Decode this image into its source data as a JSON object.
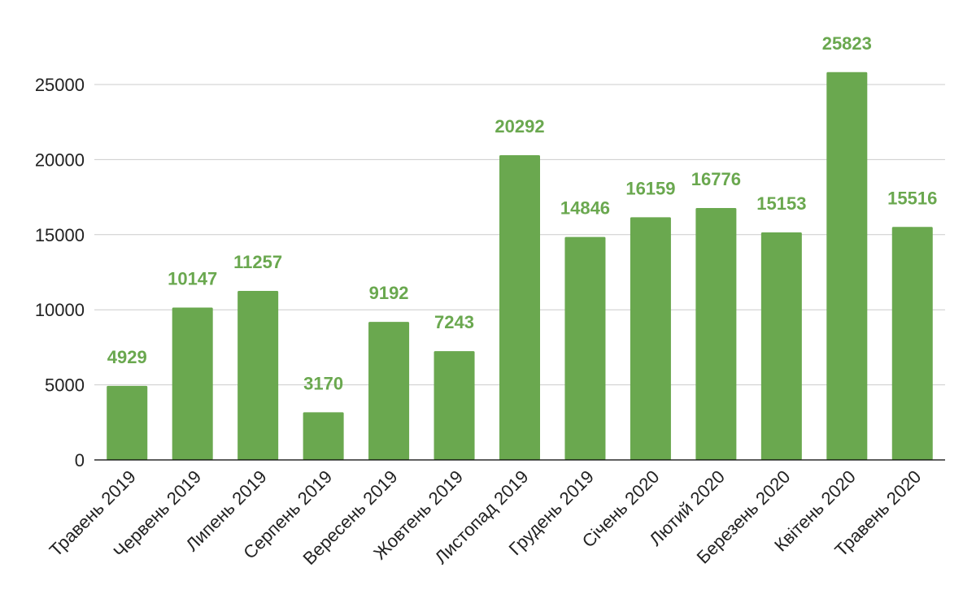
{
  "chart_data": {
    "type": "bar",
    "title": "",
    "xlabel": "",
    "ylabel": "",
    "categories": [
      "Травень 2019",
      "Червень 2019",
      "Липень 2019",
      "Серпень 2019",
      "Вересень 2019",
      "Жовтень 2019",
      "Листопад 2019",
      "Грудень 2019",
      "Січень 2020",
      "Лютий 2020",
      "Березень 2020",
      "Квітень 2020",
      "Травень 2020"
    ],
    "values": [
      4929,
      10147,
      11257,
      3170,
      9192,
      7243,
      20292,
      14846,
      16159,
      16776,
      15153,
      25823,
      15516
    ],
    "ylim": [
      0,
      25000
    ],
    "yticks": [
      0,
      5000,
      10000,
      15000,
      20000,
      25000
    ],
    "grid": true,
    "legend": "none",
    "data_labels": true
  },
  "colors": {
    "bar": "#6aa84f",
    "label": "#6aa84f",
    "grid": "#cccccc",
    "axis": "#000000",
    "text": "#222222"
  }
}
